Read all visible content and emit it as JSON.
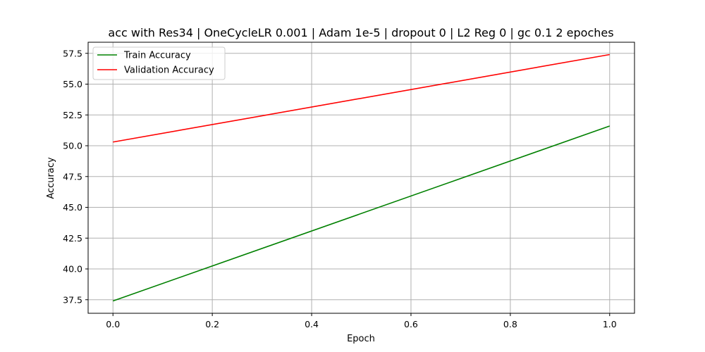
{
  "chart_data": {
    "type": "line",
    "title": "acc with Res34 | OneCycleLR 0.001 | Adam 1e-5 | dropout 0 | L2 Reg 0 | gc 0.1 2 epoches",
    "xlabel": "Epoch",
    "ylabel": "Accuracy",
    "xlim": [
      -0.05,
      1.05
    ],
    "ylim": [
      36.4,
      58.4
    ],
    "x_ticks": [
      0.0,
      0.2,
      0.4,
      0.6,
      0.8,
      1.0
    ],
    "x_tick_labels": [
      "0.0",
      "0.2",
      "0.4",
      "0.6",
      "0.8",
      "1.0"
    ],
    "y_ticks": [
      37.5,
      40.0,
      42.5,
      45.0,
      47.5,
      50.0,
      52.5,
      55.0,
      57.5
    ],
    "y_tick_labels": [
      "37.5",
      "40.0",
      "42.5",
      "45.0",
      "47.5",
      "50.0",
      "52.5",
      "55.0",
      "57.5"
    ],
    "grid": true,
    "legend_position": "upper-left",
    "series": [
      {
        "name": "Train Accuracy",
        "color": "#008000",
        "x": [
          0,
          1
        ],
        "values": [
          37.4,
          51.6
        ]
      },
      {
        "name": "Validation Accuracy",
        "color": "#ff0000",
        "x": [
          0,
          1
        ],
        "values": [
          50.3,
          57.4
        ]
      }
    ]
  }
}
